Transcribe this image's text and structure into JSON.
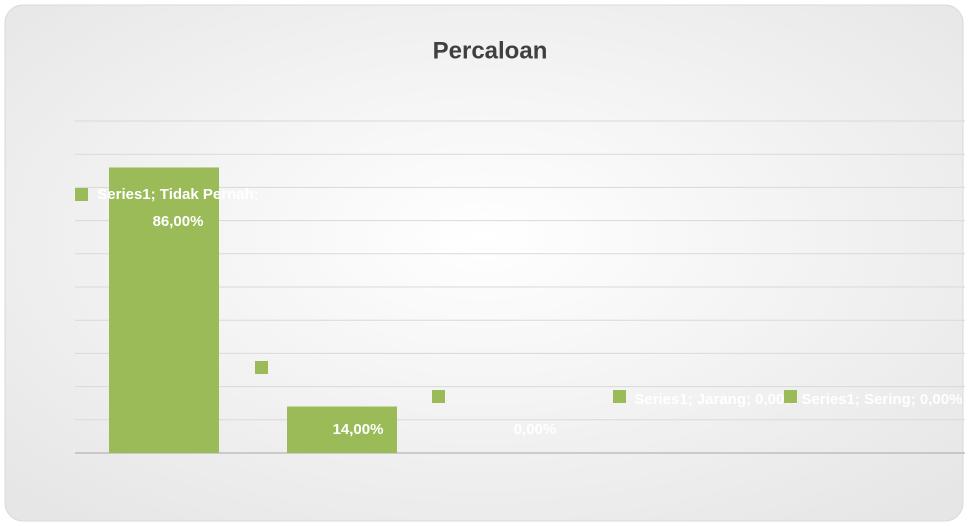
{
  "chart_data": {
    "type": "bar",
    "title": "Percaloan",
    "series": [
      {
        "name": "Series1",
        "color": "#9bbb59",
        "values": [
          86,
          14,
          0,
          0,
          0
        ],
        "value_labels": [
          "Series1; Tidak Pernah; 86,00%",
          "14,00%",
          "0,00%",
          "Series1; Jarang; 0,00%",
          "Series1; Sering; 0,00%"
        ]
      }
    ],
    "categories": [
      null,
      null,
      null,
      null,
      null
    ],
    "ylim": [
      0,
      100
    ],
    "yticks": [
      0,
      10,
      20,
      30,
      40,
      50,
      60,
      70,
      80,
      90,
      100
    ],
    "grid": true
  }
}
